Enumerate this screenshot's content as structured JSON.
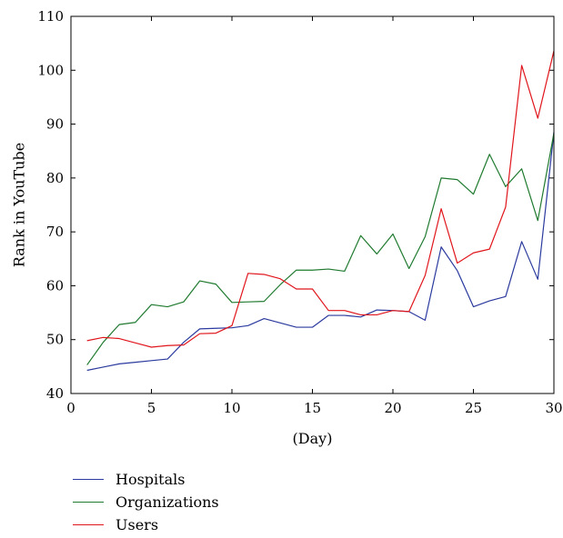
{
  "chart_data": {
    "type": "line",
    "title": "",
    "xlabel": "(Day)",
    "ylabel": "Rank in YouTube",
    "xlim": [
      0,
      30
    ],
    "ylim": [
      40,
      110
    ],
    "xticks": [
      0,
      5,
      10,
      15,
      20,
      25,
      30
    ],
    "yticks": [
      40,
      50,
      60,
      70,
      80,
      90,
      100,
      110
    ],
    "legend_position": "bottom-left, below plot",
    "grid": false,
    "x": [
      1,
      2,
      3,
      4,
      5,
      6,
      7,
      8,
      9,
      10,
      11,
      12,
      13,
      14,
      15,
      16,
      17,
      18,
      19,
      20,
      21,
      22,
      23,
      24,
      25,
      26,
      27,
      28,
      29,
      30
    ],
    "series": [
      {
        "name": "Hospitals",
        "color": "#2b3a9e",
        "values": [
          44.3,
          44.9,
          45.5,
          45.8,
          46.1,
          46.4,
          49.5,
          52.0,
          52.1,
          52.2,
          52.6,
          53.9,
          53.1,
          52.3,
          52.3,
          54.5,
          54.5,
          54.2,
          55.5,
          55.4,
          55.2,
          53.6,
          67.2,
          62.8,
          56.1,
          57.2,
          58.0,
          68.2,
          61.2,
          88.5
        ]
      },
      {
        "name": "Organizations",
        "color": "#1f7a2f",
        "values": [
          45.3,
          49.5,
          52.8,
          53.2,
          56.5,
          56.1,
          57.0,
          60.9,
          60.3,
          56.9,
          57.0,
          57.1,
          60.2,
          62.9,
          62.9,
          63.1,
          62.7,
          69.3,
          65.9,
          69.6,
          63.2,
          69.1,
          80.0,
          79.7,
          77.0,
          84.4,
          78.4,
          81.7,
          72.1,
          88.3
        ]
      },
      {
        "name": "Users",
        "color": "#e0161c",
        "values": [
          49.8,
          50.4,
          50.2,
          49.4,
          48.6,
          48.9,
          49.0,
          51.1,
          51.2,
          52.6,
          62.3,
          62.1,
          61.3,
          59.4,
          59.4,
          55.4,
          55.4,
          54.6,
          54.6,
          55.4,
          55.2,
          61.9,
          74.3,
          64.2,
          66.1,
          66.8,
          74.6,
          100.9,
          91.1,
          103.6
        ]
      }
    ]
  }
}
